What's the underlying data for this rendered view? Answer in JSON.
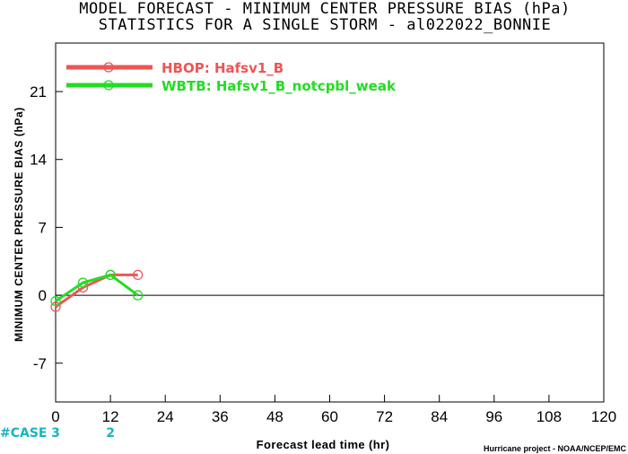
{
  "chart_data": {
    "type": "line",
    "title": "MODEL FORECAST - MINIMUM CENTER PRESSURE BIAS (hPa)",
    "subtitle": "STATISTICS FOR A SINGLE STORM - al022022_BONNIE",
    "xlabel": "Forecast lead time (hr)",
    "ylabel": "MINIMUM CENTER PRESSURE BIAS (hPa)",
    "xlim": [
      0,
      120
    ],
    "ylim": [
      -11,
      26
    ],
    "x_ticks": [
      0,
      12,
      24,
      36,
      48,
      60,
      72,
      84,
      96,
      108,
      120
    ],
    "y_ticks": [
      -7,
      0,
      7,
      14,
      21
    ],
    "zero_line": true,
    "grid": false,
    "legend_position": "top-left",
    "series": [
      {
        "name": "HBOP: Hafsv1_B",
        "color": "#ee5555",
        "x": [
          0,
          6,
          12,
          18
        ],
        "y": [
          -1.2,
          0.8,
          2.1,
          2.1
        ]
      },
      {
        "name": "WBTB: Hafsv1_B_notcpbl_weak",
        "color": "#22dd22",
        "x": [
          0,
          6,
          12,
          18
        ],
        "y": [
          -0.6,
          1.3,
          2.1,
          0.0
        ]
      }
    ],
    "case_label": "#CASE",
    "case_counts": [
      {
        "x": 0,
        "label": "3"
      },
      {
        "x": 12,
        "label": "2"
      }
    ],
    "credit": "Hurricane project - NOAA/NCEP/EMC"
  }
}
